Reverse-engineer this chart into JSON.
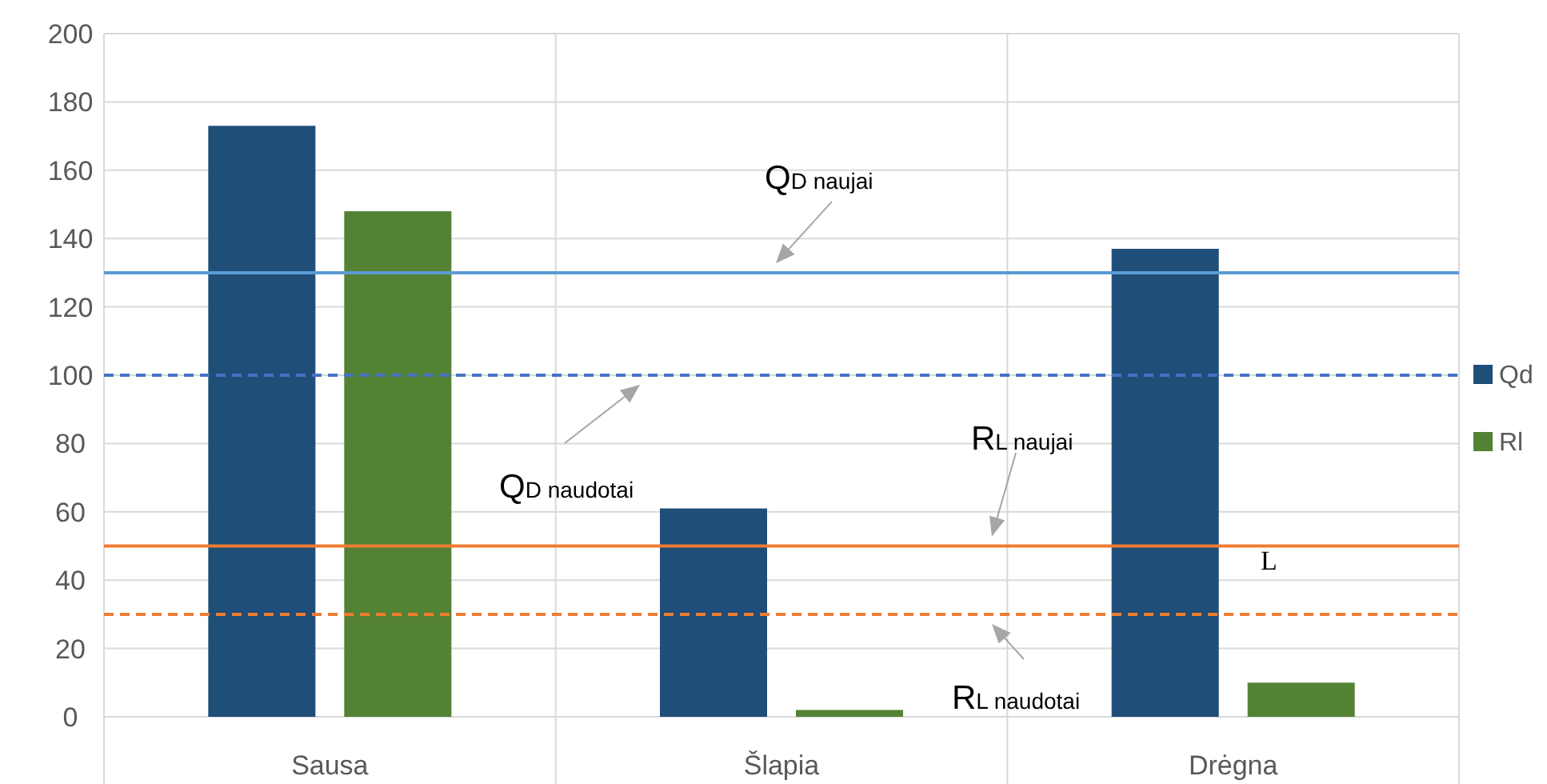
{
  "chart_data": {
    "type": "bar",
    "categories": [
      "Sausa",
      "Šlapia",
      "Drėgna"
    ],
    "series": [
      {
        "name": "Qd",
        "color": "#1f4e79",
        "values": [
          173,
          61,
          137
        ]
      },
      {
        "name": "Rl",
        "color": "#548235",
        "values": [
          148,
          2,
          10
        ]
      }
    ],
    "ylim": [
      0,
      200
    ],
    "yticks": [
      0,
      20,
      40,
      60,
      80,
      100,
      120,
      140,
      160,
      180,
      200
    ],
    "grid": true,
    "legend": "right",
    "ref_lines": [
      {
        "axis": "y",
        "value": 130,
        "label": "Q$_{D}$ naujai",
        "color": "#5b9bd5",
        "line_style": "solid"
      },
      {
        "axis": "y",
        "value": 100,
        "label": "Q$_{D}$ naudotai",
        "color": "#4472c4",
        "line_style": "dashed"
      },
      {
        "axis": "y",
        "value": 50,
        "label": "R$_{L}$ naujai",
        "color": "#ed7d31",
        "line_style": "solid"
      },
      {
        "axis": "y",
        "value": 30,
        "label": "R$_{L}$ naudotai",
        "color": "#ed7d31",
        "line_style": "dashed"
      }
    ],
    "annotations": [
      "L"
    ]
  }
}
